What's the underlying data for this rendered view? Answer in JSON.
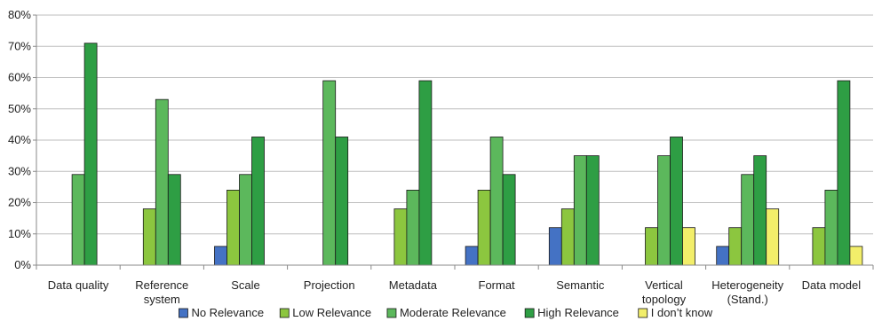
{
  "chart_data": {
    "type": "bar",
    "categories": [
      [
        "Data quality"
      ],
      [
        "Reference",
        "system"
      ],
      [
        "Scale"
      ],
      [
        "Projection"
      ],
      [
        "Metadata"
      ],
      [
        "Format"
      ],
      [
        "Semantic"
      ],
      [
        "Vertical",
        "topology"
      ],
      [
        "Heterogeneity",
        "(Stand.)"
      ],
      [
        "Data model"
      ]
    ],
    "ylim": [
      0,
      80
    ],
    "yticks": [
      "0%",
      "10%",
      "20%",
      "30%",
      "40%",
      "50%",
      "60%",
      "70%",
      "80%"
    ],
    "grid": true,
    "legend_position": "bottom",
    "series": [
      {
        "name": "No Relevance",
        "color": "#4472C4",
        "values": [
          0,
          0,
          6,
          0,
          0,
          6,
          12,
          0,
          6,
          0
        ]
      },
      {
        "name": "Low Relevance",
        "color": "#8CC63F",
        "values": [
          0,
          18,
          24,
          0,
          18,
          24,
          18,
          12,
          12,
          12
        ]
      },
      {
        "name": "Moderate Relevance",
        "color": "#5CB85C",
        "values": [
          29,
          53,
          29,
          59,
          24,
          41,
          35,
          35,
          29,
          24
        ]
      },
      {
        "name": "High Relevance",
        "color": "#2E9E44",
        "values": [
          71,
          29,
          41,
          41,
          59,
          29,
          35,
          41,
          35,
          59
        ]
      },
      {
        "name": "I don’t know",
        "color": "#F2EE6A",
        "values": [
          0,
          0,
          0,
          0,
          0,
          0,
          0,
          12,
          18,
          6
        ]
      }
    ]
  }
}
